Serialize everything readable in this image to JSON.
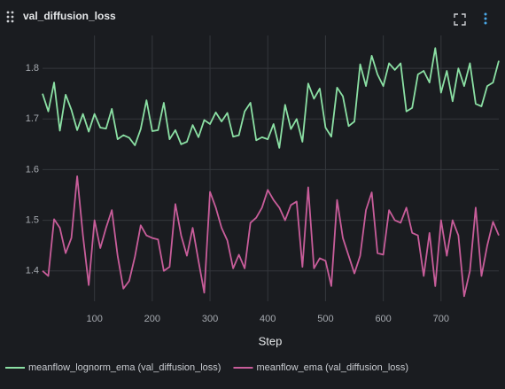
{
  "chart_data": {
    "type": "line",
    "title": "val_diffusion_loss",
    "x_label": "Step",
    "grid": true,
    "legend": "bottom",
    "x": [
      10,
      20,
      30,
      40,
      50,
      60,
      70,
      80,
      90,
      100,
      110,
      120,
      130,
      140,
      150,
      160,
      170,
      180,
      190,
      200,
      210,
      220,
      230,
      240,
      250,
      260,
      270,
      280,
      290,
      300,
      310,
      320,
      330,
      340,
      350,
      360,
      370,
      380,
      390,
      400,
      410,
      420,
      430,
      440,
      450,
      460,
      470,
      480,
      490,
      500,
      510,
      520,
      530,
      540,
      550,
      560,
      570,
      580,
      590,
      600,
      610,
      620,
      630,
      640,
      650,
      660,
      670,
      680,
      690,
      700,
      710,
      720,
      730,
      740,
      750,
      760,
      770,
      780,
      790,
      800
    ],
    "xlim": [
      10,
      800
    ],
    "xticks": [
      100,
      200,
      300,
      400,
      500,
      600,
      700
    ],
    "ylim": [
      1.34,
      1.865
    ],
    "yticks": [
      1.4,
      1.5,
      1.6,
      1.7,
      1.8
    ],
    "series": [
      {
        "name": "meanflow_lognorm_ema (val_diffusion_loss)",
        "color": "#8be0a4",
        "values": [
          1.75,
          1.715,
          1.772,
          1.677,
          1.748,
          1.718,
          1.678,
          1.71,
          1.675,
          1.71,
          1.683,
          1.681,
          1.72,
          1.66,
          1.668,
          1.663,
          1.648,
          1.68,
          1.737,
          1.676,
          1.678,
          1.732,
          1.66,
          1.678,
          1.65,
          1.655,
          1.688,
          1.664,
          1.698,
          1.69,
          1.713,
          1.695,
          1.712,
          1.665,
          1.668,
          1.715,
          1.732,
          1.658,
          1.664,
          1.66,
          1.69,
          1.643,
          1.728,
          1.68,
          1.7,
          1.655,
          1.77,
          1.74,
          1.76,
          1.683,
          1.665,
          1.762,
          1.745,
          1.686,
          1.695,
          1.808,
          1.765,
          1.825,
          1.788,
          1.765,
          1.81,
          1.797,
          1.81,
          1.715,
          1.722,
          1.788,
          1.795,
          1.772,
          1.84,
          1.752,
          1.795,
          1.735,
          1.8,
          1.765,
          1.81,
          1.73,
          1.725,
          1.765,
          1.772,
          1.815
        ]
      },
      {
        "name": "meanflow_ema (val_diffusion_loss)",
        "color": "#c85d9a",
        "values": [
          1.4,
          1.39,
          1.502,
          1.485,
          1.435,
          1.465,
          1.587,
          1.47,
          1.372,
          1.5,
          1.445,
          1.485,
          1.52,
          1.43,
          1.365,
          1.38,
          1.428,
          1.49,
          1.47,
          1.465,
          1.462,
          1.4,
          1.408,
          1.532,
          1.47,
          1.43,
          1.485,
          1.42,
          1.357,
          1.556,
          1.525,
          1.485,
          1.46,
          1.405,
          1.432,
          1.405,
          1.495,
          1.505,
          1.525,
          1.56,
          1.54,
          1.525,
          1.5,
          1.53,
          1.537,
          1.408,
          1.565,
          1.405,
          1.425,
          1.42,
          1.37,
          1.54,
          1.465,
          1.43,
          1.395,
          1.43,
          1.52,
          1.555,
          1.435,
          1.432,
          1.52,
          1.5,
          1.495,
          1.525,
          1.475,
          1.47,
          1.39,
          1.475,
          1.37,
          1.5,
          1.43,
          1.5,
          1.47,
          1.35,
          1.4,
          1.525,
          1.39,
          1.45,
          1.497,
          1.47
        ]
      }
    ]
  }
}
